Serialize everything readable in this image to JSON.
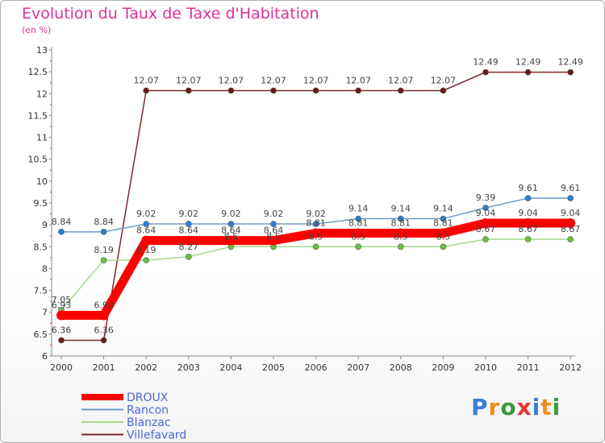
{
  "chart_data": {
    "type": "line",
    "title": "Evolution du Taux de Taxe d'Habitation",
    "ylabel": "(en %)",
    "xlabel": "",
    "categories": [
      "2000",
      "2001",
      "2002",
      "2003",
      "2004",
      "2005",
      "2006",
      "2007",
      "2008",
      "2009",
      "2010",
      "2011",
      "2012"
    ],
    "ylim": [
      6,
      13
    ],
    "yticks": [
      "6",
      "6.5",
      "7",
      "7.5",
      "8",
      "8.5",
      "9",
      "9.5",
      "10",
      "10.5",
      "11",
      "11.5",
      "12",
      "12.5",
      "13"
    ],
    "grid": false,
    "legend_position": "bottom-left",
    "series": [
      {
        "name": "Villefavard",
        "color": "#7a2a2a",
        "point_color": "#6b1a1a",
        "values": [
          6.36,
          6.36,
          12.07,
          12.07,
          12.07,
          12.07,
          12.07,
          12.07,
          12.07,
          12.07,
          12.49,
          12.49,
          12.49
        ],
        "labels": [
          "6.36",
          "6.36",
          "12.07",
          "12.07",
          "12.07",
          "12.07",
          "12.07",
          "12.07",
          "12.07",
          "12.07",
          "12.49",
          "12.49",
          "12.49"
        ]
      },
      {
        "name": "Rancon",
        "color": "#6e9ac8",
        "point_color": "#2e7fd0",
        "values": [
          8.84,
          8.84,
          9.02,
          9.02,
          9.02,
          9.02,
          9.02,
          9.14,
          9.14,
          9.14,
          9.39,
          9.61,
          9.61
        ],
        "labels": [
          "8.84",
          "8.84",
          "9.02",
          "9.02",
          "9.02",
          "9.02",
          "9.02",
          "9.14",
          "9.14",
          "9.14",
          "9.39",
          "9.61",
          "9.61"
        ]
      },
      {
        "name": "Blanzac",
        "color": "#a6d98a",
        "point_color": "#6cc040",
        "values": [
          7.05,
          8.19,
          8.19,
          8.27,
          8.5,
          8.5,
          8.5,
          8.5,
          8.5,
          8.5,
          8.67,
          8.67,
          8.67
        ],
        "labels": [
          "7.05",
          "8.19",
          "8.19",
          "8.27",
          "8.5",
          "8.5",
          "8.5",
          "8.5",
          "8.5",
          "8.5",
          "8.67",
          "8.67",
          "8.67"
        ]
      },
      {
        "name": "DROUX",
        "color": "#ff0000",
        "point_color": "#ff0000",
        "values": [
          6.93,
          6.93,
          8.64,
          8.64,
          8.64,
          8.64,
          8.81,
          8.81,
          8.81,
          8.81,
          9.04,
          9.04,
          9.04
        ],
        "labels": [
          "6.93",
          "6.93",
          "8.64",
          "8.64",
          "8.64",
          "8.64",
          "8.81",
          "8.81",
          "8.81",
          "8.81",
          "9.04",
          "9.04",
          "9.04"
        ]
      }
    ],
    "legend": [
      "DROUX",
      "Rancon",
      "Blanzac",
      "Villefavard"
    ]
  },
  "logo": {
    "text": "Proxiti",
    "letters": [
      "P",
      "r",
      "o",
      "x",
      "i",
      "t",
      "i"
    ],
    "colors": [
      "#3a7fd6",
      "#f08a1c",
      "#3a9a3a",
      "#e83030",
      "#3a7fd6",
      "#f08a1c",
      "#3a9a3a"
    ]
  }
}
